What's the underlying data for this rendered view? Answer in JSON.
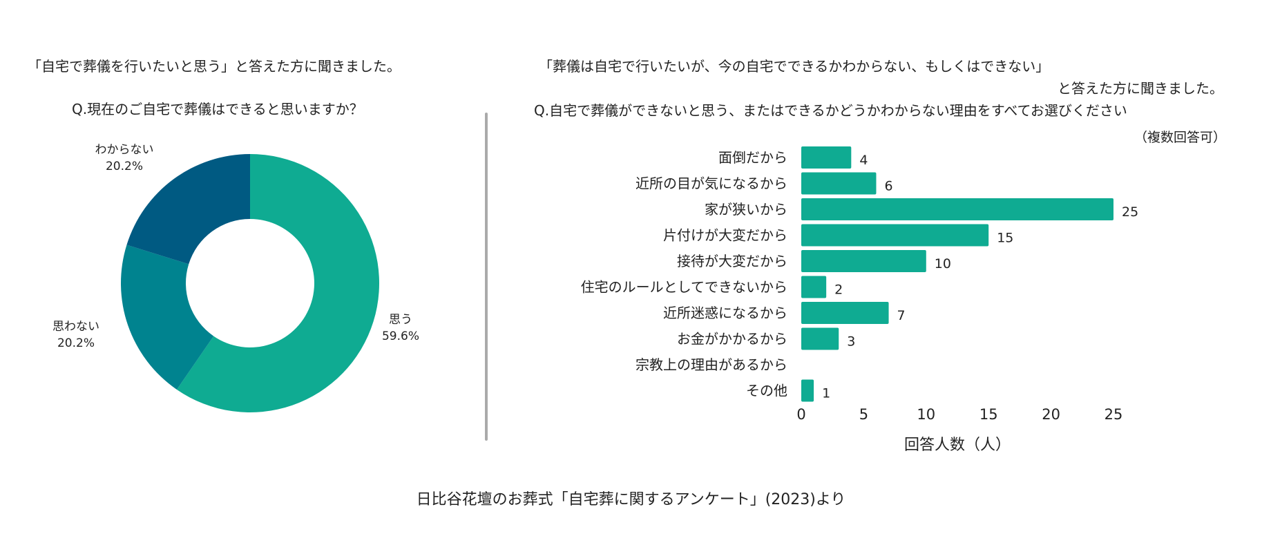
{
  "left_panel": {
    "intro": "「自宅で葬儀を行いたいと思う」と答えた方に聞きました。",
    "question": "Q.現在のご自宅で葬儀はできると思いますか？"
  },
  "right_panel": {
    "intro_line1": "「葬儀は自宅で行いたいが、今の自宅でできるかわからない、もしくはできない」",
    "intro_line2": "と答えた方に聞きました。",
    "question": "Q.自宅で葬儀ができないと思う、またはできるかどうかわからない理由をすべてお選びください",
    "note": "（複数回答可）"
  },
  "footer": "日比谷花壇のお葬式「自宅葬に関するアンケート」(2023)より",
  "chart_data": [
    {
      "type": "pie",
      "donut": true,
      "title": "Q.現在のご自宅で葬儀はできると思いますか？",
      "slices": [
        {
          "label": "思う",
          "value": 59.6,
          "value_label": "59.6%",
          "color": "#0fab92"
        },
        {
          "label": "思わない",
          "value": 20.2,
          "value_label": "20.2%",
          "color": "#00838f"
        },
        {
          "label": "わからない",
          "value": 20.2,
          "value_label": "20.2%",
          "color": "#005a82"
        }
      ],
      "start": "12 o'clock",
      "direction": "clockwise"
    },
    {
      "type": "bar",
      "orientation": "horizontal",
      "title": "Q.自宅で葬儀ができないと思う、またはできるかどうかわからない理由をすべてお選びください",
      "categories": [
        "面倒だから",
        "近所の目が気になるから",
        "家が狭いから",
        "片付けが大変だから",
        "接待が大変だから",
        "住宅のルールとしてできないから",
        "近所迷惑になるから",
        "お金がかかるから",
        "宗教上の理由があるから",
        "その他"
      ],
      "values": [
        4,
        6,
        25,
        15,
        10,
        2,
        7,
        3,
        0,
        1
      ],
      "value_labels": [
        "4",
        "6",
        "25",
        "15",
        "10",
        "2",
        "7",
        "3",
        "",
        "1"
      ],
      "xlabel": "回答人数（人）",
      "ylabel": "",
      "xlim": [
        0,
        25
      ],
      "xticks": [
        "0",
        "5",
        "10",
        "15",
        "20",
        "25"
      ],
      "grid": false,
      "color": "#0fab92"
    }
  ]
}
